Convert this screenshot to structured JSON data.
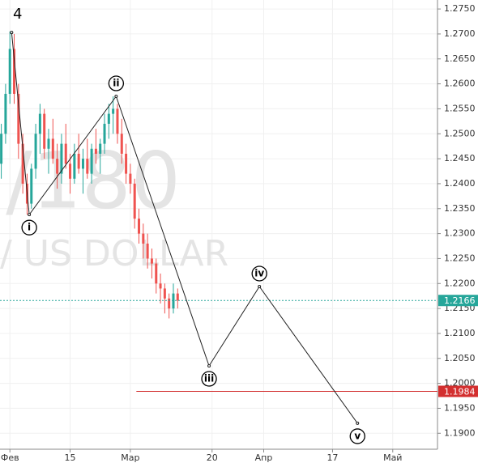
{
  "chart_data": {
    "type": "candlestick",
    "title": "4",
    "watermark": "/180",
    "watermark_subtitle": "/ US DOLLAR",
    "up_color": "#26a69a",
    "down_color": "#ef5350",
    "grid": true,
    "xlim": [
      -2.3,
      99.4
    ],
    "ylim": [
      1.1868,
      1.2768
    ],
    "xticks": [
      {
        "value": 0,
        "label": "Фев"
      },
      {
        "value": 14,
        "label": "15"
      },
      {
        "value": 28,
        "label": "Мар"
      },
      {
        "value": 47,
        "label": "20"
      },
      {
        "value": 59,
        "label": "Апр"
      },
      {
        "value": 75,
        "label": "17"
      },
      {
        "value": 89,
        "label": "Май"
      }
    ],
    "yticks": [
      {
        "value": 1.19,
        "label": "1.1900"
      },
      {
        "value": 1.195,
        "label": "1.1950"
      },
      {
        "value": 1.2,
        "label": "1.2000"
      },
      {
        "value": 1.205,
        "label": "1.2050"
      },
      {
        "value": 1.21,
        "label": "1.2100"
      },
      {
        "value": 1.215,
        "label": "1.2150"
      },
      {
        "value": 1.22,
        "label": "1.2200"
      },
      {
        "value": 1.225,
        "label": "1.2250"
      },
      {
        "value": 1.23,
        "label": "1.2300"
      },
      {
        "value": 1.235,
        "label": "1.2350"
      },
      {
        "value": 1.24,
        "label": "1.2400"
      },
      {
        "value": 1.245,
        "label": "1.2450"
      },
      {
        "value": 1.25,
        "label": "1.2500"
      },
      {
        "value": 1.255,
        "label": "1.2550"
      },
      {
        "value": 1.26,
        "label": "1.2600"
      },
      {
        "value": 1.265,
        "label": "1.2650"
      },
      {
        "value": 1.27,
        "label": "1.2700"
      },
      {
        "value": 1.275,
        "label": "1.2750"
      }
    ],
    "x": [
      -2,
      -1,
      0,
      1,
      2,
      3,
      4,
      5,
      6,
      7,
      8,
      9,
      10,
      11,
      12,
      13,
      14,
      15,
      16,
      17,
      18,
      19,
      20,
      21,
      22,
      23,
      24,
      25,
      26,
      27,
      28,
      29,
      30,
      31,
      32,
      33,
      34,
      35,
      36,
      37,
      38,
      39
    ],
    "open": [
      1.244,
      1.25,
      1.258,
      1.267,
      1.258,
      1.248,
      1.24,
      1.236,
      1.243,
      1.25,
      1.254,
      1.247,
      1.249,
      1.245,
      1.242,
      1.248,
      1.244,
      1.241,
      1.246,
      1.243,
      1.245,
      1.242,
      1.247,
      1.246,
      1.248,
      1.252,
      1.254,
      1.255,
      1.25,
      1.246,
      1.242,
      1.24,
      1.233,
      1.23,
      1.228,
      1.225,
      1.224,
      1.22,
      1.219,
      1.217,
      1.215,
      1.218
    ],
    "high": [
      1.252,
      1.26,
      1.2705,
      1.27,
      1.26,
      1.25,
      1.242,
      1.244,
      1.252,
      1.256,
      1.255,
      1.251,
      1.253,
      1.248,
      1.25,
      1.252,
      1.246,
      1.248,
      1.25,
      1.247,
      1.249,
      1.248,
      1.251,
      1.249,
      1.254,
      1.256,
      1.2575,
      1.256,
      1.253,
      1.248,
      1.244,
      1.241,
      1.235,
      1.232,
      1.23,
      1.227,
      1.225,
      1.222,
      1.22,
      1.218,
      1.22,
      1.219
    ],
    "low": [
      1.241,
      1.248,
      1.256,
      1.256,
      1.245,
      1.238,
      1.2338,
      1.235,
      1.241,
      1.246,
      1.245,
      1.242,
      1.244,
      1.239,
      1.24,
      1.243,
      1.238,
      1.24,
      1.242,
      1.238,
      1.241,
      1.24,
      1.244,
      1.242,
      1.246,
      1.249,
      1.25,
      1.248,
      1.244,
      1.24,
      1.238,
      1.231,
      1.228,
      1.225,
      1.223,
      1.221,
      1.218,
      1.216,
      1.214,
      1.213,
      1.214,
      1.215
    ],
    "close": [
      1.25,
      1.258,
      1.267,
      1.258,
      1.248,
      1.24,
      1.236,
      1.243,
      1.25,
      1.254,
      1.247,
      1.249,
      1.245,
      1.242,
      1.248,
      1.244,
      1.241,
      1.246,
      1.243,
      1.245,
      1.242,
      1.247,
      1.246,
      1.248,
      1.252,
      1.254,
      1.255,
      1.25,
      1.246,
      1.242,
      1.24,
      1.233,
      1.23,
      1.228,
      1.225,
      1.224,
      1.22,
      1.219,
      1.217,
      1.215,
      1.218,
      1.2166
    ],
    "waves": {
      "x": [
        0.4,
        4.5,
        24.7,
        46.3,
        58,
        80.8
      ],
      "values": [
        1.2703,
        1.2338,
        1.2575,
        1.2035,
        1.2194,
        1.192
      ],
      "labels": [
        null,
        "i",
        "ii",
        "iii",
        "iv",
        "v"
      ]
    },
    "levels": [
      {
        "value": 1.2166,
        "label": "1.2166",
        "color": "#26a69a",
        "style": "dotted"
      },
      {
        "value": 1.1984,
        "label": "1.1984",
        "color": "#d32f2f",
        "x_start": 29.4
      }
    ]
  }
}
